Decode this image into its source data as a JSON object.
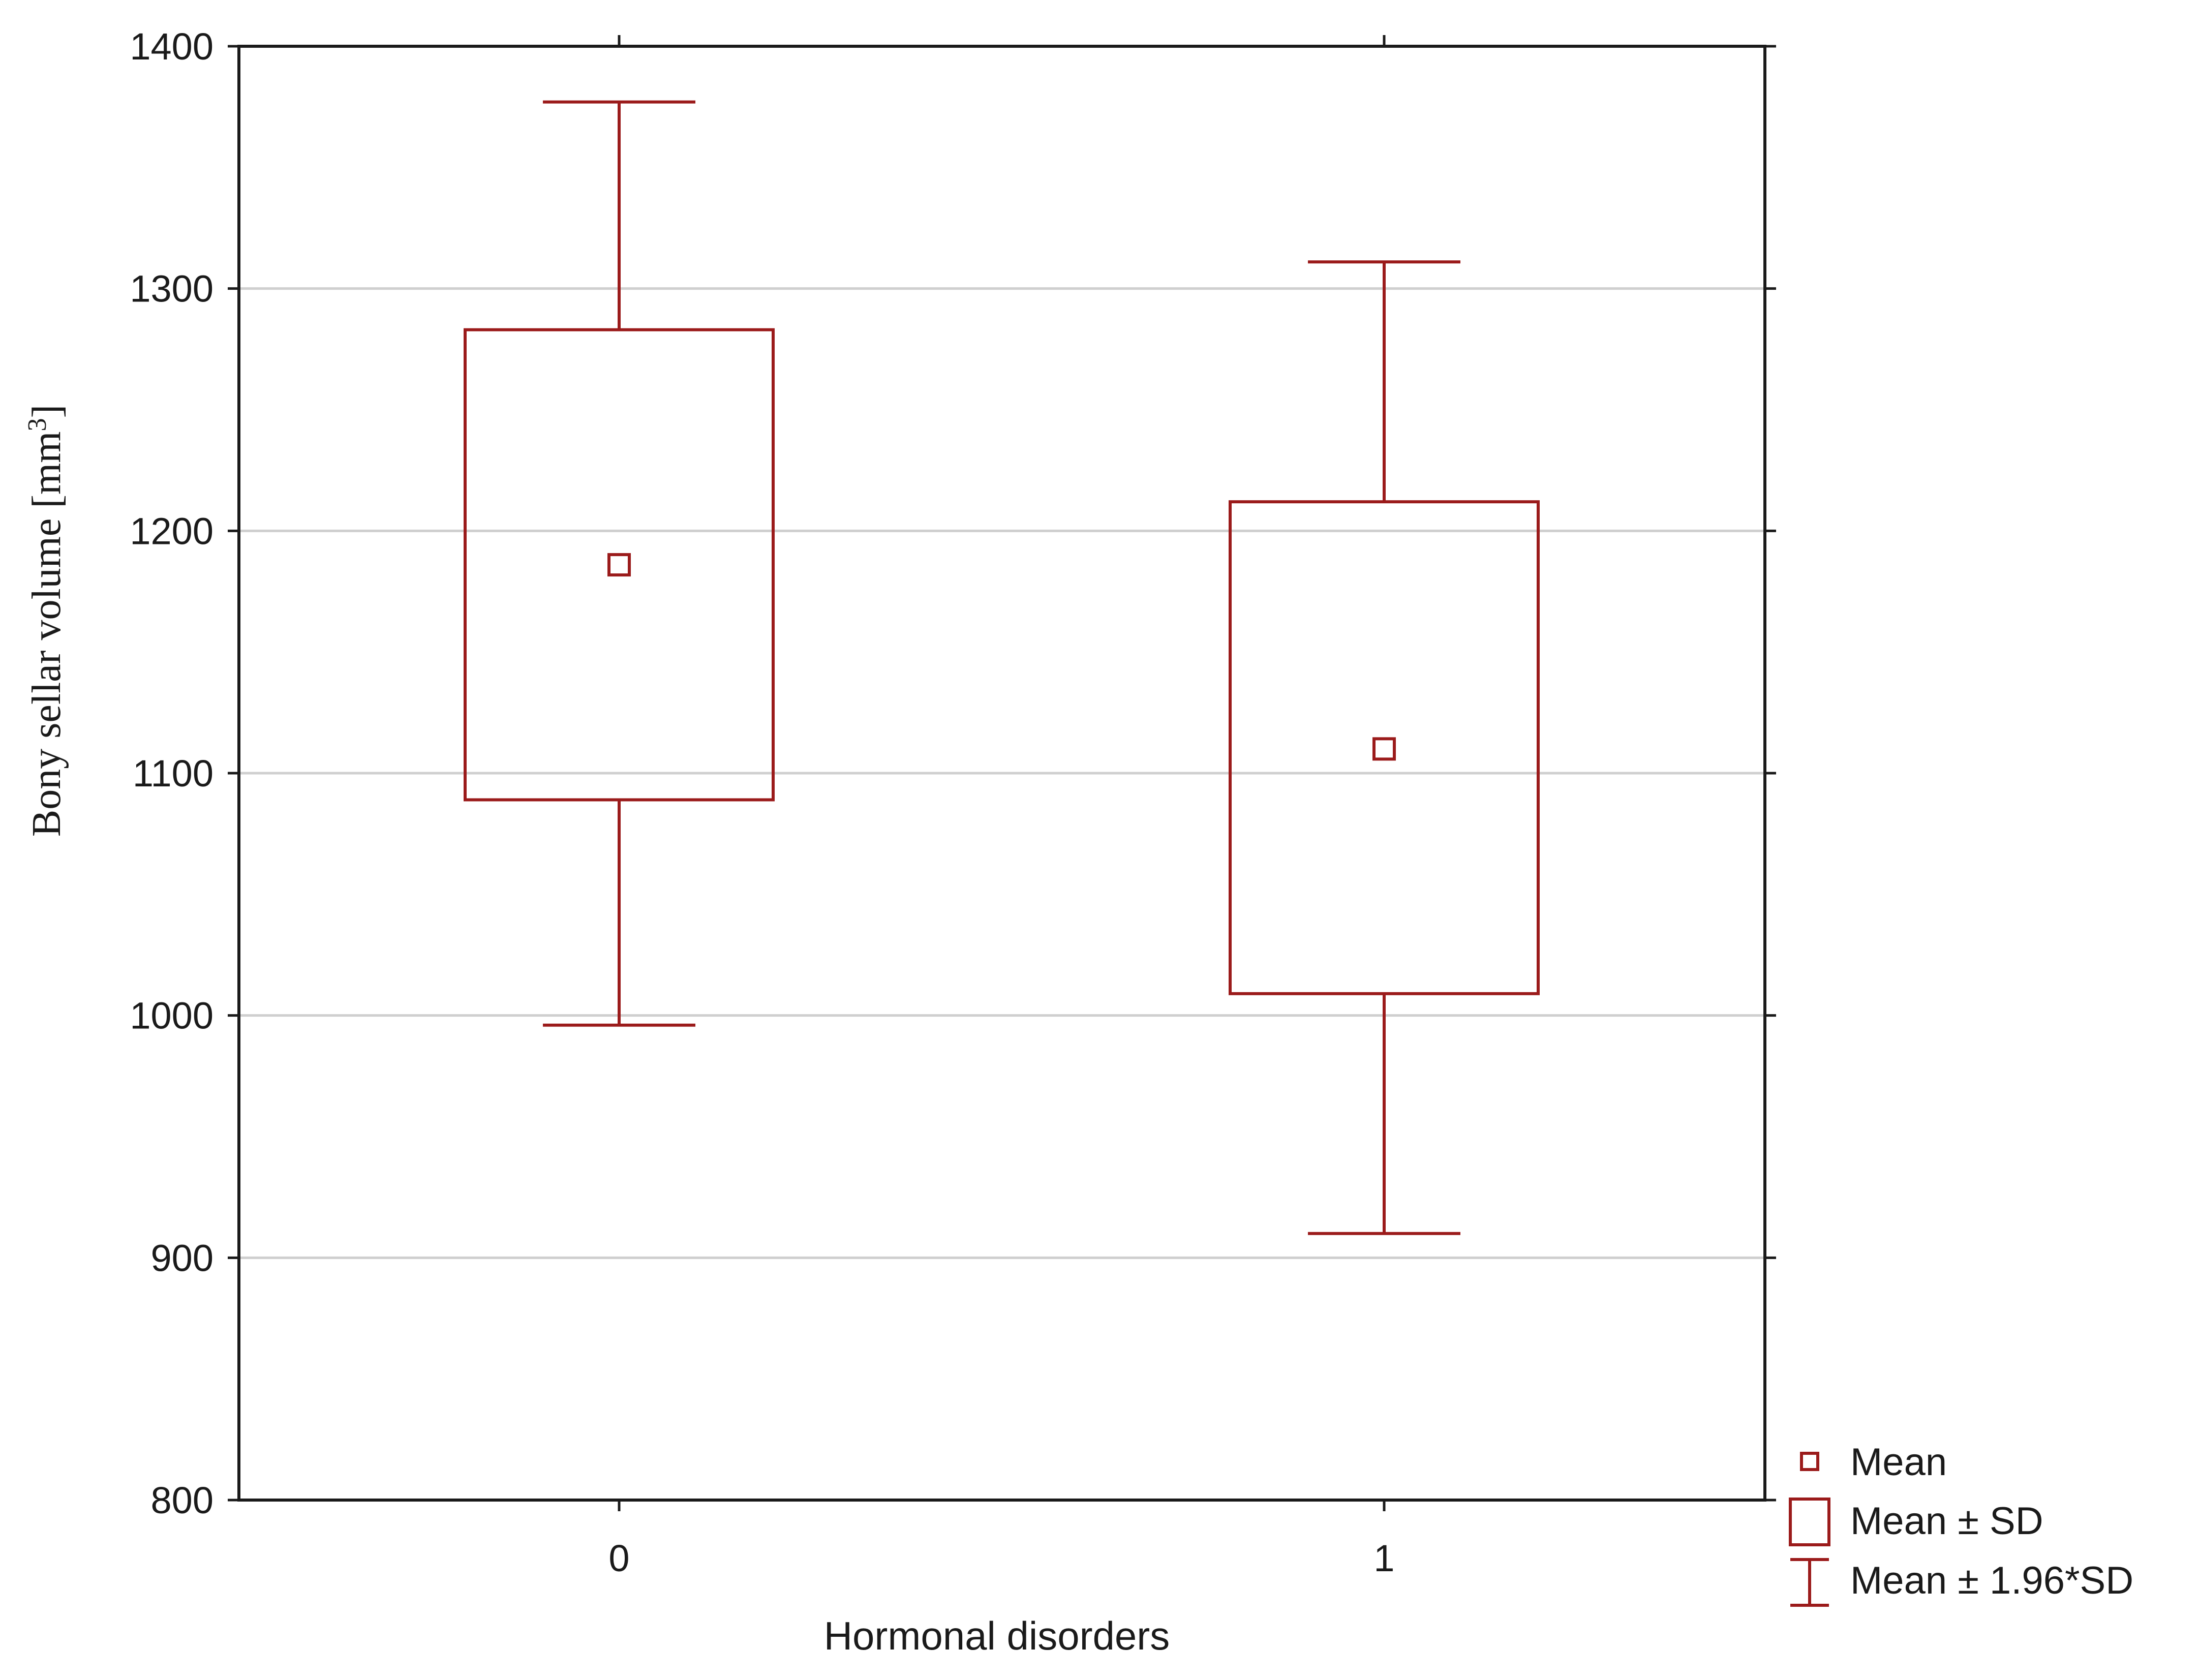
{
  "chart_data": {
    "type": "box",
    "xlabel": "Hormonal disorders",
    "ylabel": "Bony sellar volume [mm",
    "ylabel_superscript": "3",
    "ylabel_suffix": "]",
    "ylim": [
      800,
      1400
    ],
    "yticks": [
      800,
      900,
      1000,
      1100,
      1200,
      1300,
      1400
    ],
    "grid": true,
    "categories": [
      "0",
      "1"
    ],
    "groups": [
      {
        "category": "0",
        "mean": 1186,
        "sd_low": 1089,
        "sd_high": 1283,
        "ci_low": 996,
        "ci_high": 1377
      },
      {
        "category": "1",
        "mean": 1110,
        "sd_low": 1009,
        "sd_high": 1212,
        "ci_low": 910,
        "ci_high": 1311
      }
    ],
    "legend": {
      "position": "bottom-right",
      "entries": [
        "Mean",
        "Mean ± SD",
        "Mean ± 1.96*SD"
      ]
    },
    "colors": {
      "series": "#9b1b1b",
      "grid": "#cfcfcf",
      "axis": "#1a1a1a"
    }
  }
}
